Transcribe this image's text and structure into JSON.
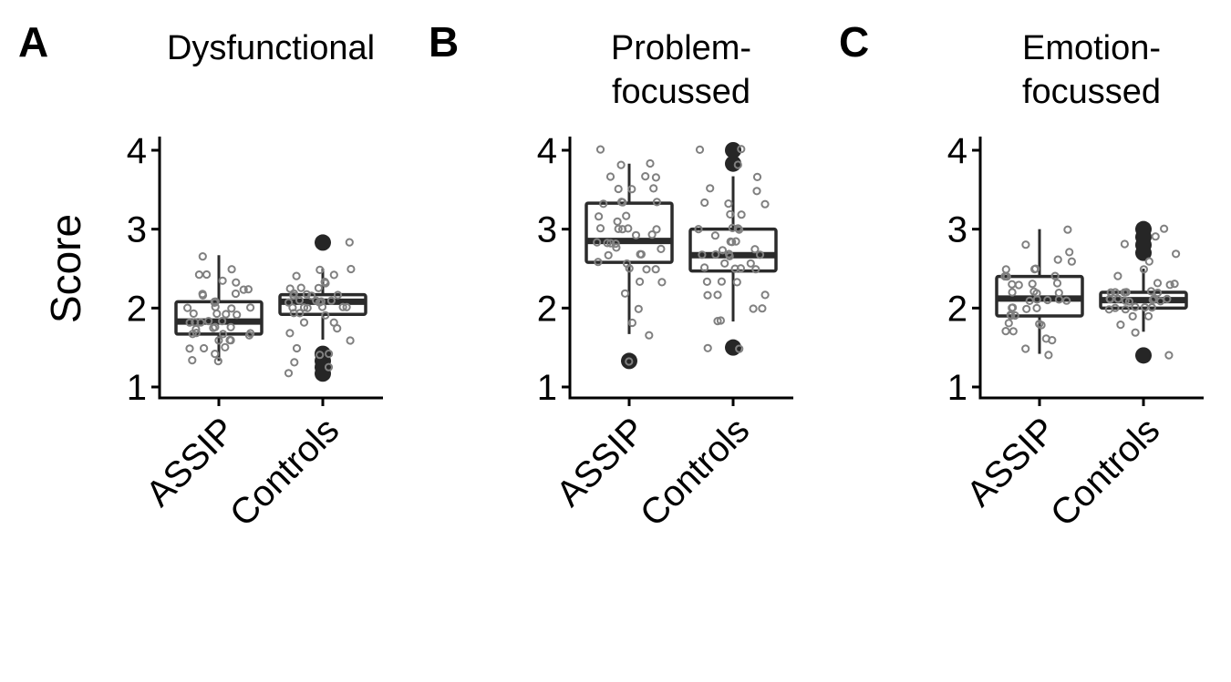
{
  "figure": {
    "ylabel": "Score",
    "colors": {
      "box": "#2b2b2b",
      "point": "#808080",
      "outlier": "#262626",
      "background": "#ffffff"
    }
  },
  "chart_data": [
    {
      "type": "box",
      "panel_label": "A",
      "title": "Dysfunctional",
      "categories": [
        "ASSIP",
        "Controls"
      ],
      "ylim": [
        1,
        4
      ],
      "yticks": [
        1,
        2,
        3,
        4
      ],
      "series": [
        {
          "category": "ASSIP",
          "box": {
            "min": 1.33,
            "q1": 1.67,
            "median": 1.83,
            "q3": 2.08,
            "max": 2.67
          },
          "outliers": [],
          "points": [
            1.33,
            1.33,
            1.42,
            1.5,
            1.5,
            1.5,
            1.58,
            1.58,
            1.58,
            1.67,
            1.67,
            1.67,
            1.67,
            1.67,
            1.75,
            1.75,
            1.75,
            1.75,
            1.83,
            1.83,
            1.83,
            1.83,
            1.83,
            1.92,
            1.92,
            1.92,
            1.92,
            2.0,
            2.0,
            2.0,
            2.0,
            2.08,
            2.08,
            2.08,
            2.17,
            2.17,
            2.17,
            2.25,
            2.25,
            2.33,
            2.33,
            2.42,
            2.42,
            2.5,
            2.67
          ]
        },
        {
          "category": "Controls",
          "box": {
            "min": 1.6,
            "q1": 1.92,
            "median": 2.08,
            "q3": 2.17,
            "max": 2.5
          },
          "outliers": [
            2.83,
            1.42,
            1.33,
            1.25,
            1.17
          ],
          "points": [
            1.17,
            1.25,
            1.33,
            1.42,
            1.42,
            1.5,
            1.58,
            1.67,
            1.75,
            1.83,
            1.83,
            1.92,
            1.92,
            1.92,
            2.0,
            2.0,
            2.0,
            2.0,
            2.0,
            2.0,
            2.08,
            2.08,
            2.08,
            2.08,
            2.08,
            2.08,
            2.17,
            2.17,
            2.17,
            2.17,
            2.17,
            2.25,
            2.25,
            2.25,
            2.33,
            2.33,
            2.42,
            2.42,
            2.5,
            2.5,
            2.83
          ]
        }
      ]
    },
    {
      "type": "box",
      "panel_label": "B",
      "title": "Problem-\nfocussed",
      "categories": [
        "ASSIP",
        "Controls"
      ],
      "ylim": [
        1,
        4
      ],
      "yticks": [
        1,
        2,
        3,
        4
      ],
      "series": [
        {
          "category": "ASSIP",
          "box": {
            "min": 1.67,
            "q1": 2.58,
            "median": 2.85,
            "q3": 3.33,
            "max": 3.83
          },
          "outliers": [
            1.33
          ],
          "points": [
            1.33,
            1.67,
            1.83,
            2.0,
            2.17,
            2.33,
            2.33,
            2.5,
            2.5,
            2.5,
            2.58,
            2.58,
            2.67,
            2.67,
            2.67,
            2.75,
            2.75,
            2.83,
            2.83,
            2.83,
            2.83,
            2.92,
            2.92,
            3.0,
            3.0,
            3.0,
            3.0,
            3.0,
            3.08,
            3.17,
            3.17,
            3.33,
            3.33,
            3.33,
            3.33,
            3.5,
            3.5,
            3.5,
            3.67,
            3.67,
            3.67,
            3.83,
            3.83,
            4.0
          ]
        },
        {
          "category": "Controls",
          "box": {
            "min": 1.83,
            "q1": 2.47,
            "median": 2.67,
            "q3": 3.0,
            "max": 3.67
          },
          "outliers": [
            4.0,
            3.83,
            1.5
          ],
          "points": [
            1.5,
            1.5,
            1.83,
            1.83,
            2.0,
            2.0,
            2.17,
            2.17,
            2.17,
            2.33,
            2.33,
            2.33,
            2.5,
            2.5,
            2.5,
            2.5,
            2.58,
            2.58,
            2.67,
            2.67,
            2.67,
            2.67,
            2.67,
            2.75,
            2.75,
            2.83,
            2.83,
            2.83,
            2.92,
            3.0,
            3.0,
            3.0,
            3.0,
            3.17,
            3.17,
            3.33,
            3.33,
            3.33,
            3.5,
            3.5,
            3.67,
            3.83,
            4.0,
            4.0
          ]
        }
      ]
    },
    {
      "type": "box",
      "panel_label": "C",
      "title": "Emotion-\nfocussed",
      "categories": [
        "ASSIP",
        "Controls"
      ],
      "ylim": [
        1,
        4
      ],
      "yticks": [
        1,
        2,
        3,
        4
      ],
      "series": [
        {
          "category": "ASSIP",
          "box": {
            "min": 1.42,
            "q1": 1.9,
            "median": 2.12,
            "q3": 2.4,
            "max": 3.0
          },
          "outliers": [],
          "points": [
            1.4,
            1.5,
            1.6,
            1.6,
            1.7,
            1.7,
            1.8,
            1.8,
            1.8,
            1.9,
            1.9,
            1.9,
            2.0,
            2.0,
            2.0,
            2.0,
            2.1,
            2.1,
            2.1,
            2.1,
            2.1,
            2.2,
            2.2,
            2.2,
            2.2,
            2.3,
            2.3,
            2.3,
            2.3,
            2.4,
            2.4,
            2.4,
            2.5,
            2.5,
            2.5,
            2.6,
            2.6,
            2.7,
            2.8,
            3.0
          ]
        },
        {
          "category": "Controls",
          "box": {
            "min": 1.7,
            "q1": 2.0,
            "median": 2.1,
            "q3": 2.2,
            "max": 2.5
          },
          "outliers": [
            3.0,
            2.9,
            2.8,
            2.7,
            1.4
          ],
          "points": [
            1.4,
            1.7,
            1.8,
            1.9,
            1.9,
            2.0,
            2.0,
            2.0,
            2.0,
            2.0,
            2.0,
            2.1,
            2.1,
            2.1,
            2.1,
            2.1,
            2.1,
            2.1,
            2.1,
            2.1,
            2.2,
            2.2,
            2.2,
            2.2,
            2.2,
            2.2,
            2.3,
            2.3,
            2.3,
            2.4,
            2.5,
            2.6,
            2.7,
            2.8,
            2.9,
            3.0
          ]
        }
      ]
    }
  ]
}
